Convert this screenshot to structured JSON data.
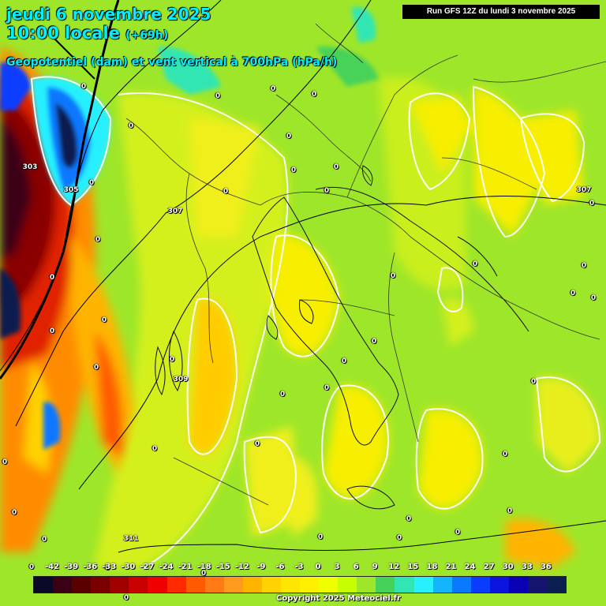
{
  "header": {
    "date": "jeudi 6 novembre 2025",
    "time": "10:00 locale",
    "lead": "(+69h)",
    "parameter": "Geopotentiel (dam) et vent vertical à 700hPa (hPa/h)"
  },
  "run": "Run GFS 12Z du lundi 3 novembre 2025",
  "copyright": "Copyright 2025 Meteociel.fr",
  "geopotential_labels": [
    "303",
    "305",
    "307",
    "307",
    "309",
    "311"
  ],
  "zero_label": "0",
  "legend": {
    "ticks": [
      "-42",
      "-39",
      "-36",
      "-33",
      "-30",
      "-27",
      "-24",
      "-21",
      "-18",
      "-15",
      "-12",
      "-9",
      "-6",
      "-3",
      "0",
      "3",
      "6",
      "9",
      "12",
      "15",
      "18",
      "21",
      "24",
      "27",
      "30",
      "33",
      "36"
    ],
    "colors": [
      "#0a0a28",
      "#3a0014",
      "#5a0000",
      "#7a0000",
      "#a00000",
      "#c80000",
      "#f00000",
      "#ff2a00",
      "#ff5a00",
      "#ff7a14",
      "#ff9a1e",
      "#ffb400",
      "#ffd200",
      "#ffe600",
      "#fff000",
      "#f0ff00",
      "#c8ff00",
      "#9ee62a",
      "#46d25a",
      "#32e6b4",
      "#28f0ff",
      "#14b4ff",
      "#0a78ff",
      "#0a3cff",
      "#0a14dc",
      "#0a00b4",
      "#14146e",
      "#0a1e50"
    ]
  }
}
